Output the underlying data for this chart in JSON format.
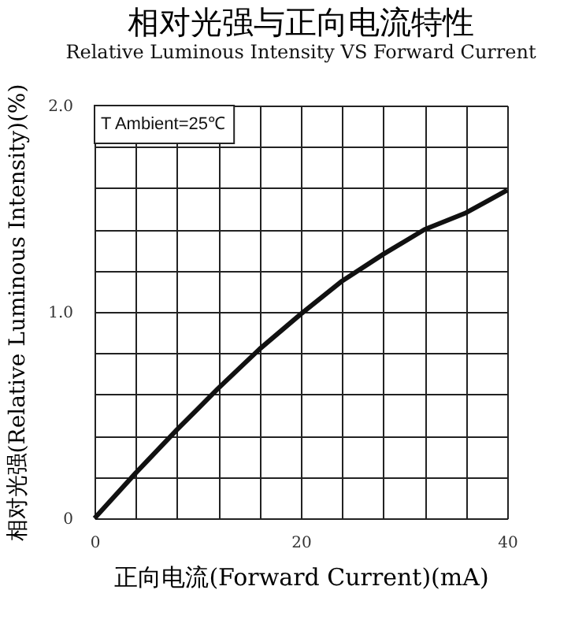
{
  "chart_data": {
    "type": "line",
    "title": "相对光强与正向电流特性",
    "subtitle": "Relative Luminous Intensity VS Forward Current",
    "xlabel": "正向电流(Forward Current)(mA)",
    "ylabel": "相对光强(Relative Luminous Intensity)(%)",
    "x": [
      0,
      4,
      8,
      12,
      16,
      20,
      24,
      28,
      32,
      36,
      40
    ],
    "series": [
      {
        "color": "#111111",
        "values": [
          0,
          0.22,
          0.43,
          0.63,
          0.82,
          0.99,
          1.15,
          1.28,
          1.4,
          1.48,
          1.59
        ]
      }
    ],
    "xlim": [
      0,
      40
    ],
    "xticks": [
      0,
      {
        "value": 4,
        "label": null
      },
      {
        "value": 8,
        "label": null
      },
      {
        "value": 12,
        "label": null
      },
      {
        "value": 16,
        "label": null
      },
      20,
      {
        "value": 24,
        "label": null
      },
      {
        "value": 28,
        "label": null
      },
      {
        "value": 32,
        "label": null
      },
      {
        "value": 36,
        "label": null
      },
      40
    ],
    "ylim": [
      0,
      2
    ],
    "yticks": [
      0,
      {
        "value": 0.2,
        "label": null
      },
      {
        "value": 0.4,
        "label": null
      },
      {
        "value": 0.6,
        "label": null
      },
      {
        "value": 0.8,
        "label": null
      },
      {
        "value": 1,
        "label": "1.0"
      },
      {
        "value": 1.2,
        "label": null
      },
      {
        "value": 1.4,
        "label": null
      },
      {
        "value": 1.6,
        "label": null
      },
      {
        "value": 1.8,
        "label": null
      },
      {
        "value": 2,
        "label": "2.0"
      }
    ],
    "annotations": [
      "T Ambient=25℃"
    ],
    "grid": true,
    "legend": false,
    "marker": "none",
    "line_style": "solid"
  }
}
